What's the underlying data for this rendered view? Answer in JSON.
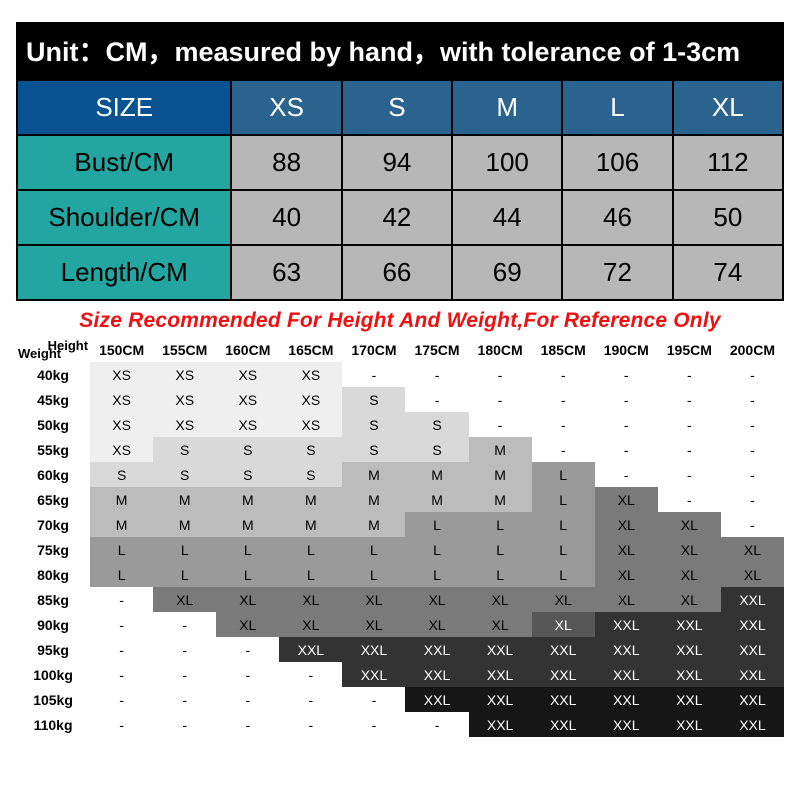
{
  "sizeTable": {
    "title": "Unit：CM，measured by hand，with tolerance of 1-3cm",
    "headerLabel": "SIZE",
    "sizes": [
      "XS",
      "S",
      "M",
      "L",
      "XL"
    ],
    "rows": [
      {
        "label": "Bust/CM",
        "values": [
          88,
          94,
          100,
          106,
          112
        ]
      },
      {
        "label": "Shoulder/CM",
        "values": [
          40,
          42,
          44,
          46,
          50
        ]
      },
      {
        "label": "Length/CM",
        "values": [
          63,
          66,
          69,
          72,
          74
        ]
      }
    ],
    "colors": {
      "titleBg": "#000000",
      "titleFg": "#ffffff",
      "headerLabelBg": "#095291",
      "headerSizeBg": "#2b638f",
      "headerFg": "#ffffff",
      "rowLabelBg": "#23a5a1",
      "valueBg": "#b7b7b7",
      "border": "#000000"
    },
    "fontSizes": {
      "title": 27,
      "header": 28,
      "rowLabel": 24,
      "value": 26
    }
  },
  "recommend": {
    "banner": "Size Recommended For Height And Weight,For Reference Only",
    "bannerColor": "#ee1111",
    "cornerHeight": "Height",
    "cornerWeight": "Weight",
    "heights": [
      "150CM",
      "155CM",
      "160CM",
      "165CM",
      "170CM",
      "175CM",
      "180CM",
      "185CM",
      "190CM",
      "195CM",
      "200CM"
    ],
    "weights": [
      "40kg",
      "45kg",
      "50kg",
      "55kg",
      "60kg",
      "65kg",
      "70kg",
      "75kg",
      "80kg",
      "85kg",
      "90kg",
      "95kg",
      "100kg",
      "105kg",
      "110kg"
    ],
    "shadeColors": {
      "0": "#ffffff",
      "1": "#efefef",
      "2": "#d9d9d9",
      "3": "#bcbcbc",
      "4": "#9a9a9a",
      "5": "#7a7a7a",
      "6": "#575757",
      "7": "#333333",
      "8": "#161616"
    },
    "shadeTextLight": "#ffffff",
    "shadeTextDark": "#000000",
    "cells": [
      [
        [
          "XS",
          1
        ],
        [
          "XS",
          1
        ],
        [
          "XS",
          1
        ],
        [
          "XS",
          1
        ],
        [
          "-",
          0
        ],
        [
          "-",
          0
        ],
        [
          "-",
          0
        ],
        [
          "-",
          0
        ],
        [
          "-",
          0
        ],
        [
          "-",
          0
        ],
        [
          "-",
          0
        ]
      ],
      [
        [
          "XS",
          1
        ],
        [
          "XS",
          1
        ],
        [
          "XS",
          1
        ],
        [
          "XS",
          1
        ],
        [
          "S",
          2
        ],
        [
          "-",
          0
        ],
        [
          "-",
          0
        ],
        [
          "-",
          0
        ],
        [
          "-",
          0
        ],
        [
          "-",
          0
        ],
        [
          "-",
          0
        ]
      ],
      [
        [
          "XS",
          1
        ],
        [
          "XS",
          1
        ],
        [
          "XS",
          1
        ],
        [
          "XS",
          1
        ],
        [
          "S",
          2
        ],
        [
          "S",
          2
        ],
        [
          "-",
          0
        ],
        [
          "-",
          0
        ],
        [
          "-",
          0
        ],
        [
          "-",
          0
        ],
        [
          "-",
          0
        ]
      ],
      [
        [
          "XS",
          1
        ],
        [
          "S",
          2
        ],
        [
          "S",
          2
        ],
        [
          "S",
          2
        ],
        [
          "S",
          2
        ],
        [
          "S",
          2
        ],
        [
          "M",
          3
        ],
        [
          "-",
          0
        ],
        [
          "-",
          0
        ],
        [
          "-",
          0
        ],
        [
          "-",
          0
        ]
      ],
      [
        [
          "S",
          2
        ],
        [
          "S",
          2
        ],
        [
          "S",
          2
        ],
        [
          "S",
          2
        ],
        [
          "M",
          3
        ],
        [
          "M",
          3
        ],
        [
          "M",
          3
        ],
        [
          "L",
          4
        ],
        [
          "-",
          0
        ],
        [
          "-",
          0
        ],
        [
          "-",
          0
        ]
      ],
      [
        [
          "M",
          3
        ],
        [
          "M",
          3
        ],
        [
          "M",
          3
        ],
        [
          "M",
          3
        ],
        [
          "M",
          3
        ],
        [
          "M",
          3
        ],
        [
          "M",
          3
        ],
        [
          "L",
          4
        ],
        [
          "XL",
          5
        ],
        [
          "-",
          0
        ],
        [
          "-",
          0
        ]
      ],
      [
        [
          "M",
          3
        ],
        [
          "M",
          3
        ],
        [
          "M",
          3
        ],
        [
          "M",
          3
        ],
        [
          "M",
          3
        ],
        [
          "L",
          4
        ],
        [
          "L",
          4
        ],
        [
          "L",
          4
        ],
        [
          "XL",
          5
        ],
        [
          "XL",
          5
        ],
        [
          "-",
          0
        ]
      ],
      [
        [
          "L",
          4
        ],
        [
          "L",
          4
        ],
        [
          "L",
          4
        ],
        [
          "L",
          4
        ],
        [
          "L",
          4
        ],
        [
          "L",
          4
        ],
        [
          "L",
          4
        ],
        [
          "L",
          4
        ],
        [
          "XL",
          5
        ],
        [
          "XL",
          5
        ],
        [
          "XL",
          5
        ]
      ],
      [
        [
          "L",
          4
        ],
        [
          "L",
          4
        ],
        [
          "L",
          4
        ],
        [
          "L",
          4
        ],
        [
          "L",
          4
        ],
        [
          "L",
          4
        ],
        [
          "L",
          4
        ],
        [
          "L",
          4
        ],
        [
          "XL",
          5
        ],
        [
          "XL",
          5
        ],
        [
          "XL",
          5
        ]
      ],
      [
        [
          "-",
          0
        ],
        [
          "XL",
          5
        ],
        [
          "XL",
          5
        ],
        [
          "XL",
          5
        ],
        [
          "XL",
          5
        ],
        [
          "XL",
          5
        ],
        [
          "XL",
          5
        ],
        [
          "XL",
          5
        ],
        [
          "XL",
          5
        ],
        [
          "XL",
          5
        ],
        [
          "XXL",
          7
        ]
      ],
      [
        [
          "-",
          0
        ],
        [
          "-",
          0
        ],
        [
          "XL",
          5
        ],
        [
          "XL",
          5
        ],
        [
          "XL",
          5
        ],
        [
          "XL",
          5
        ],
        [
          "XL",
          5
        ],
        [
          "XL",
          6
        ],
        [
          "XXL",
          7
        ],
        [
          "XXL",
          7
        ],
        [
          "XXL",
          7
        ]
      ],
      [
        [
          "-",
          0
        ],
        [
          "-",
          0
        ],
        [
          "-",
          0
        ],
        [
          "XXL",
          7
        ],
        [
          "XXL",
          7
        ],
        [
          "XXL",
          7
        ],
        [
          "XXL",
          7
        ],
        [
          "XXL",
          7
        ],
        [
          "XXL",
          7
        ],
        [
          "XXL",
          7
        ],
        [
          "XXL",
          7
        ]
      ],
      [
        [
          "-",
          0
        ],
        [
          "-",
          0
        ],
        [
          "-",
          0
        ],
        [
          "-",
          0
        ],
        [
          "XXL",
          7
        ],
        [
          "XXL",
          7
        ],
        [
          "XXL",
          7
        ],
        [
          "XXL",
          7
        ],
        [
          "XXL",
          7
        ],
        [
          "XXL",
          7
        ],
        [
          "XXL",
          7
        ]
      ],
      [
        [
          "-",
          0
        ],
        [
          "-",
          0
        ],
        [
          "-",
          0
        ],
        [
          "-",
          0
        ],
        [
          "-",
          0
        ],
        [
          "XXL",
          8
        ],
        [
          "XXL",
          8
        ],
        [
          "XXL",
          8
        ],
        [
          "XXL",
          8
        ],
        [
          "XXL",
          8
        ],
        [
          "XXL",
          8
        ]
      ],
      [
        [
          "-",
          0
        ],
        [
          "-",
          0
        ],
        [
          "-",
          0
        ],
        [
          "-",
          0
        ],
        [
          "-",
          0
        ],
        [
          "-",
          0
        ],
        [
          "XXL",
          8
        ],
        [
          "XXL",
          8
        ],
        [
          "XXL",
          8
        ],
        [
          "XXL",
          8
        ],
        [
          "XXL",
          8
        ]
      ]
    ]
  }
}
